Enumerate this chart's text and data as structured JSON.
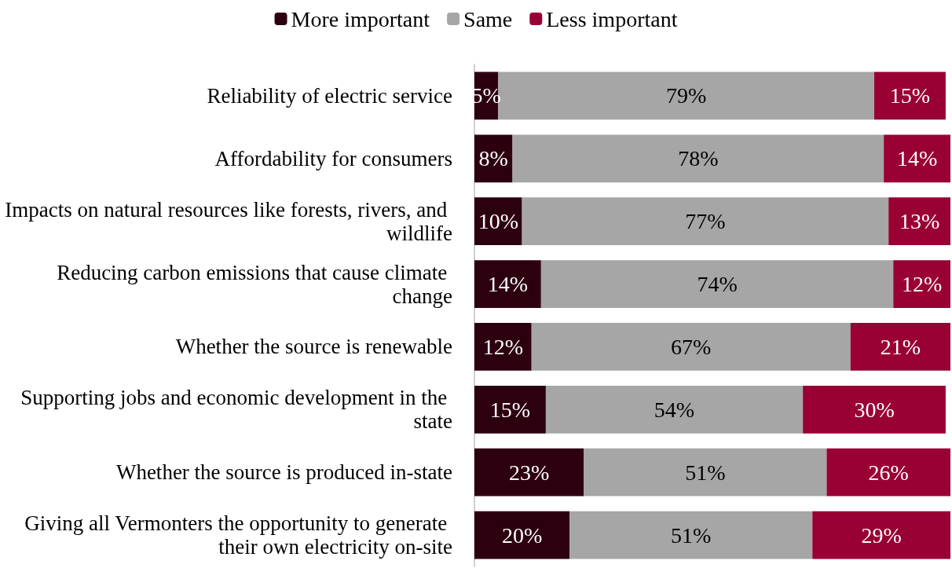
{
  "chart_data": {
    "type": "bar",
    "orientation": "horizontal",
    "stacked": true,
    "legend": "top",
    "categories": [
      "Reliability of electric service",
      "Affordability for consumers",
      "Impacts on natural resources like forests, rivers, and wildlife",
      "Reducing carbon emissions that cause climate change",
      "Whether the source is renewable",
      "Supporting jobs and economic development in the state",
      "Whether the source is produced in-state",
      "Giving all Vermonters the opportunity to generate their own electricity on-site"
    ],
    "series": [
      {
        "name": "More important",
        "color": "#2d0010",
        "values": [
          5,
          8,
          10,
          14,
          12,
          15,
          23,
          20
        ],
        "value_labels": [
          "5%",
          "8%",
          "10%",
          "14%",
          "12%",
          "15%",
          "23%",
          "20%"
        ]
      },
      {
        "name": "Same",
        "color": "#a6a6a6",
        "values": [
          79,
          78,
          77,
          74,
          67,
          54,
          51,
          51
        ],
        "value_labels": [
          "79%",
          "78%",
          "77%",
          "74%",
          "67%",
          "54%",
          "51%",
          "51%"
        ]
      },
      {
        "name": "Less important",
        "color": "#990033",
        "values": [
          15,
          14,
          13,
          12,
          21,
          30,
          26,
          29
        ],
        "value_labels": [
          "15%",
          "14%",
          "13%",
          "12%",
          "21%",
          "30%",
          "26%",
          "29%"
        ]
      }
    ]
  }
}
